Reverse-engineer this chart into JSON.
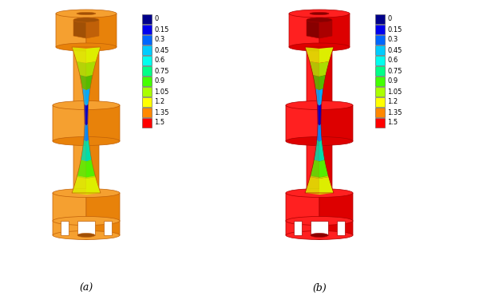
{
  "colorbar_values": [
    0,
    0.15,
    0.3,
    0.45,
    0.6,
    0.75,
    0.9,
    1.05,
    1.2,
    1.35,
    1.5
  ],
  "colorbar_colors": [
    "#00008B",
    "#0000EE",
    "#0066FF",
    "#00CCFF",
    "#00FFEE",
    "#00FF88",
    "#44FF00",
    "#AAFF00",
    "#FFFF00",
    "#FF8800",
    "#FF0000"
  ],
  "label_a": "(a)",
  "label_b": "(b)",
  "bg_color": "#FFFFFF",
  "orange_face": "#E8820A",
  "orange_light": "#F5A030",
  "orange_dark": "#C06008",
  "orange_shadow": "#A05006",
  "red_face": "#DD0000",
  "red_light": "#FF2020",
  "red_dark": "#AA0000",
  "red_shadow": "#880000"
}
